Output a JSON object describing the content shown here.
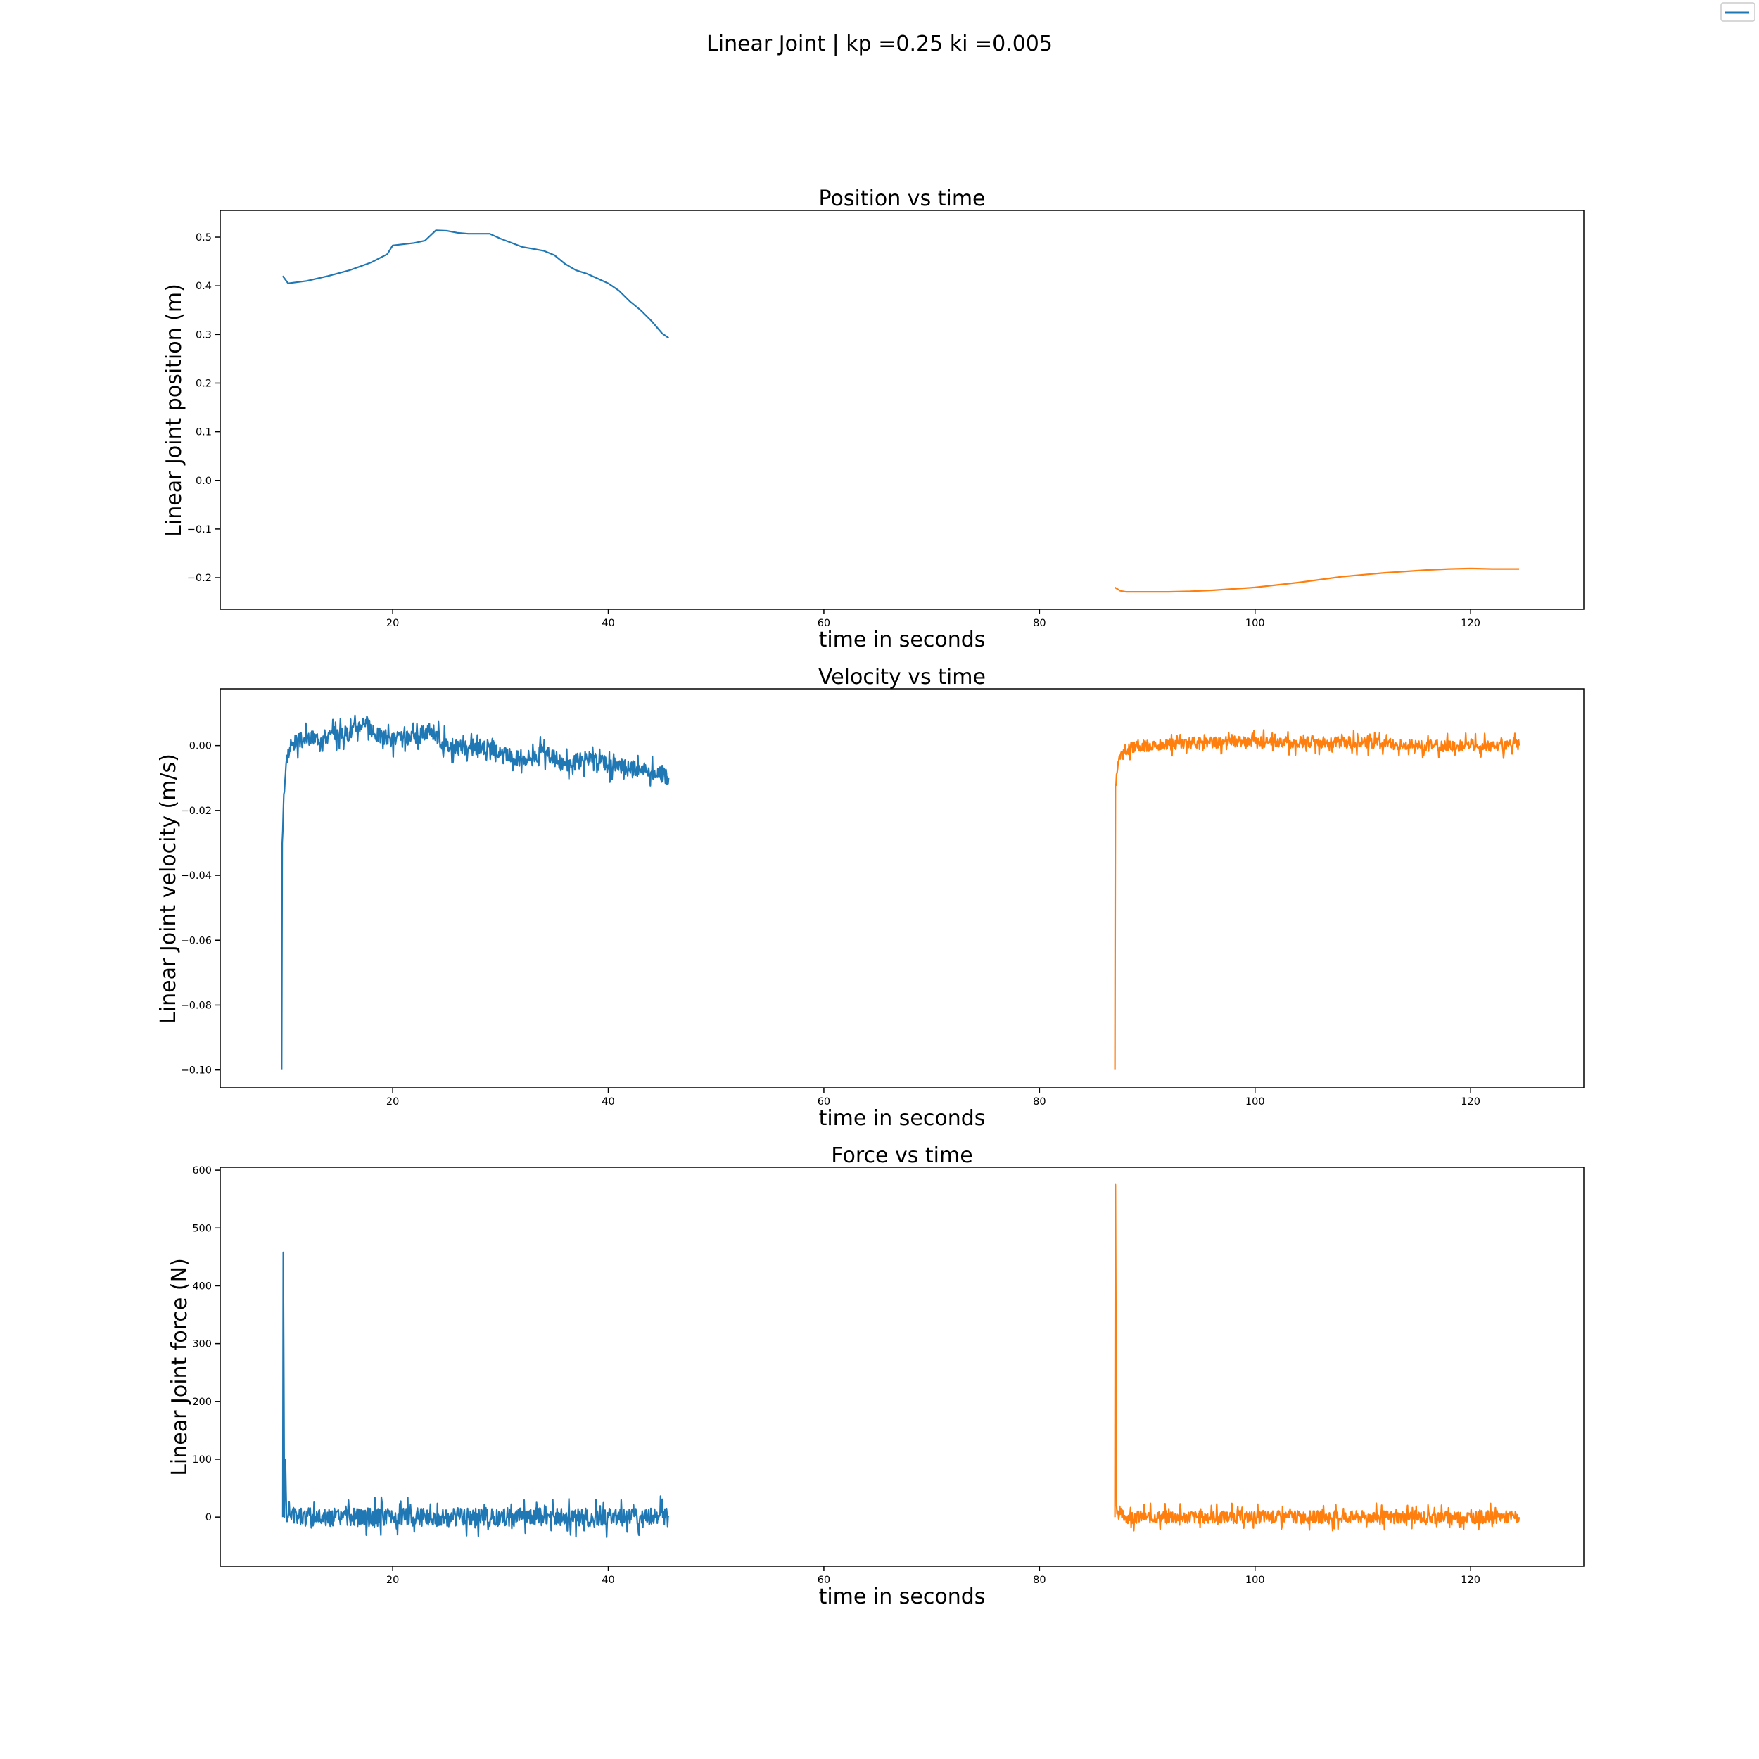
{
  "figure": {
    "title": "Linear Joint  | kp =0.25 ki =0.005",
    "legend": {
      "placement": "top-right",
      "entries": [
        {
          "name": "",
          "color": "#1f77b4"
        }
      ]
    }
  },
  "chart_data": [
    {
      "type": "line",
      "title": "Position vs time",
      "xlabel": "time in seconds",
      "ylabel": "Linear Joint position (m)",
      "xlim": [
        4,
        130.5
      ],
      "ylim": [
        -0.265,
        0.555
      ],
      "xticks": [
        20,
        40,
        60,
        80,
        100,
        120
      ],
      "yticks": [
        -0.2,
        -0.1,
        0.0,
        0.1,
        0.2,
        0.3,
        0.4,
        0.5
      ],
      "yprec": 1,
      "grid": false,
      "series": [
        {
          "color": "#1f77b4",
          "x": [
            9.8,
            10.3,
            12,
            14,
            16,
            18,
            19.5,
            20,
            22,
            23,
            24,
            25,
            26,
            27,
            29,
            30,
            32,
            34,
            35,
            36,
            37,
            38,
            39,
            40,
            41,
            42,
            43,
            44,
            45,
            45.6
          ],
          "y": [
            0.42,
            0.405,
            0.41,
            0.42,
            0.432,
            0.448,
            0.465,
            0.483,
            0.488,
            0.493,
            0.514,
            0.513,
            0.509,
            0.507,
            0.507,
            0.497,
            0.48,
            0.472,
            0.463,
            0.445,
            0.432,
            0.425,
            0.415,
            0.405,
            0.39,
            0.368,
            0.35,
            0.328,
            0.302,
            0.293
          ],
          "noise": 0,
          "seed": 1
        },
        {
          "color": "#ff7f0e",
          "x": [
            87,
            87.5,
            88,
            90,
            92,
            94,
            96,
            100,
            104,
            108,
            112,
            116,
            118,
            120,
            122,
            124.5
          ],
          "y": [
            -0.22,
            -0.227,
            -0.229,
            -0.229,
            -0.229,
            -0.228,
            -0.226,
            -0.22,
            -0.21,
            -0.198,
            -0.19,
            -0.184,
            -0.182,
            -0.181,
            -0.182,
            -0.182
          ],
          "noise": 0,
          "seed": 2
        }
      ]
    },
    {
      "type": "line",
      "title": "Velocity vs time",
      "xlabel": "time in seconds",
      "ylabel": "Linear Joint velocity (m/s)",
      "xlim": [
        4,
        130.5
      ],
      "ylim": [
        -0.1055,
        0.0175
      ],
      "xticks": [
        20,
        40,
        60,
        80,
        100,
        120
      ],
      "yticks": [
        -0.1,
        -0.08,
        -0.06,
        -0.04,
        -0.02,
        0.0
      ],
      "yprec": 2,
      "grid": false,
      "series": [
        {
          "color": "#1f77b4",
          "x": [
            9.7,
            9.75,
            9.9,
            10.2,
            10.8,
            12,
            14,
            16,
            17.5,
            18,
            20,
            22,
            23.5,
            25,
            27,
            29,
            30,
            32,
            34,
            36,
            38,
            40,
            42,
            44,
            45.6
          ],
          "y": [
            -0.1,
            -0.03,
            -0.015,
            -0.003,
            0.001,
            0.002,
            0.003,
            0.004,
            0.008,
            0.004,
            0.002,
            0.002,
            0.005,
            0.0,
            -0.001,
            0.0,
            -0.003,
            -0.004,
            -0.002,
            -0.006,
            -0.004,
            -0.006,
            -0.007,
            -0.008,
            -0.01
          ],
          "noise": 0.0025,
          "seed": 3
        },
        {
          "color": "#ff7f0e",
          "x": [
            87,
            87.05,
            87.3,
            87.7,
            88.2,
            89,
            91,
            95,
            100,
            105,
            110,
            115,
            120,
            124.5
          ],
          "y": [
            -0.1,
            -0.012,
            -0.005,
            -0.002,
            -0.001,
            0.0,
            0.0,
            0.001,
            0.001,
            0.001,
            0.001,
            0.0,
            0.0,
            0.0
          ],
          "noise": 0.0018,
          "seed": 4
        }
      ]
    },
    {
      "type": "line",
      "title": "Force vs time",
      "xlabel": "time in seconds",
      "ylabel": "Linear Joint force (N)",
      "xlim": [
        4,
        130.5
      ],
      "ylim": [
        -85,
        605
      ],
      "xticks": [
        20,
        40,
        60,
        80,
        100,
        120
      ],
      "yticks": [
        0,
        100,
        200,
        300,
        400,
        500,
        600
      ],
      "yprec": 0,
      "grid": false,
      "series": [
        {
          "color": "#1f77b4",
          "x": [
            9.8,
            9.85,
            9.95,
            10.05,
            10.15,
            10.3,
            10.5,
            12,
            16,
            20,
            25,
            30,
            35,
            40,
            45.6
          ],
          "y": [
            0,
            458,
            0,
            100,
            5,
            0,
            2,
            0,
            0,
            0,
            0,
            0,
            0,
            0,
            2
          ],
          "noise": 16,
          "seed": 5
        },
        {
          "color": "#ff7f0e",
          "x": [
            87,
            87.05,
            87.15,
            87.3,
            87.5,
            88,
            90,
            95,
            100,
            105,
            110,
            115,
            120,
            124.5
          ],
          "y": [
            0,
            575,
            20,
            8,
            5,
            0,
            0,
            0,
            0,
            0,
            0,
            0,
            0,
            0
          ],
          "noise": 11,
          "seed": 6
        }
      ]
    }
  ]
}
